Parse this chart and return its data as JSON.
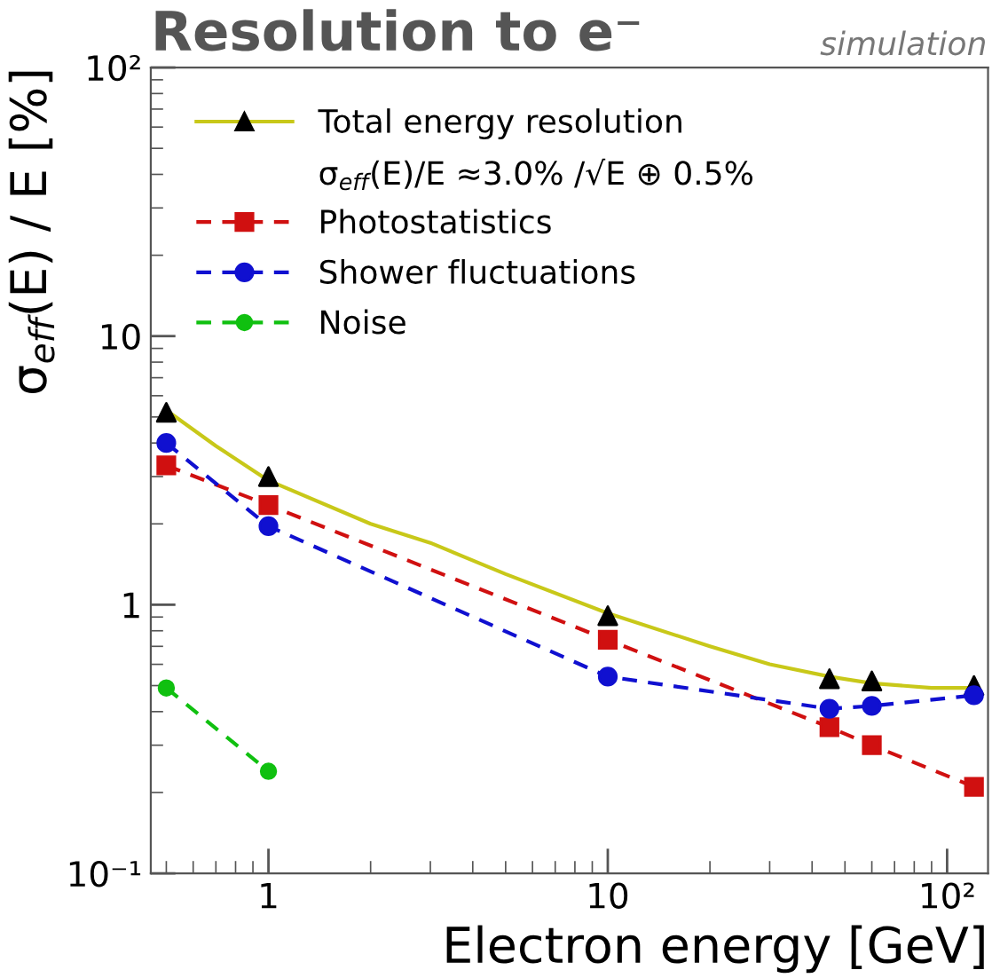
{
  "chart_data": {
    "type": "scatter",
    "title": "Resolution to e⁻",
    "subtitle": "simulation",
    "xlabel": "Electron energy [GeV]",
    "ylabel": "σ$_{eff}$(E) / E [%]",
    "log": "xy",
    "xlim": [
      0.45,
      132
    ],
    "ylim": [
      0.1,
      100
    ],
    "xticks": [
      1,
      10,
      {
        "value": 100,
        "label": "10²"
      }
    ],
    "yticks": [
      {
        "value": 0.1,
        "label": "10⁻¹"
      },
      1,
      10,
      {
        "value": 100,
        "label": "10²"
      }
    ],
    "grid": false,
    "legend": "top left",
    "annotations": [
      "σ$_{eff}$(E)/E ≈3.0% /√E ⊕ 0.5%"
    ],
    "series": [
      {
        "type": "line",
        "color": "#c8c819",
        "line_style": "solid",
        "marker": "none",
        "x": [
          0.5,
          0.7,
          1,
          2,
          3,
          5,
          10,
          20,
          30,
          45,
          60,
          90,
          120
        ],
        "values": [
          5.3,
          3.9,
          2.9,
          2.0,
          1.7,
          1.3,
          0.93,
          0.7,
          0.6,
          0.54,
          0.51,
          0.49,
          0.49
        ]
      },
      {
        "name": "Total energy resolution",
        "color": "#000000",
        "marker": "triangle",
        "x": [
          0.5,
          1,
          10,
          45,
          60,
          120
        ],
        "values": [
          5.2,
          3.0,
          0.91,
          0.53,
          0.52,
          0.5
        ]
      },
      {
        "type": "line",
        "name": "Photostatistics",
        "color": "#d01010",
        "marker": "square",
        "line_style": "dashed",
        "x": [
          0.5,
          1,
          10,
          45,
          60,
          120
        ],
        "values": [
          3.3,
          2.35,
          0.74,
          0.35,
          0.3,
          0.21
        ]
      },
      {
        "type": "line",
        "name": "Shower fluctuations",
        "color": "#1010d0",
        "marker": "circle",
        "line_style": "dashed",
        "x": [
          0.5,
          1,
          10,
          45,
          60,
          120
        ],
        "values": [
          4.0,
          1.96,
          0.54,
          0.41,
          0.42,
          0.46
        ]
      },
      {
        "type": "line",
        "name": "Noise",
        "color": "#10c010",
        "marker": "circle",
        "line_style": "dashed",
        "x": [
          0.5,
          1
        ],
        "values": [
          0.49,
          0.24
        ]
      }
    ]
  }
}
